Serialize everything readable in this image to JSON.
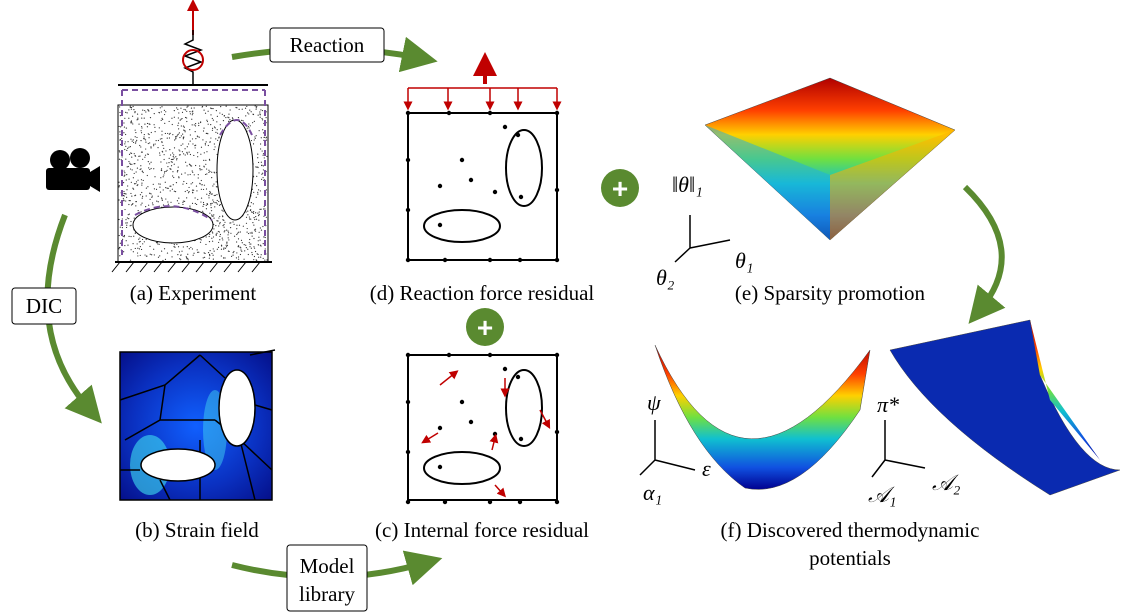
{
  "boxes": {
    "reaction": "Reaction",
    "dic": "DIC",
    "model_library": [
      "Model",
      "library"
    ]
  },
  "captions": {
    "a": "(a) Experiment",
    "d": "(d) Reaction force residual",
    "e": "(e) Sparsity promotion",
    "b": "(b) Strain field",
    "c": "(c) Internal force residual",
    "f": [
      "(f) Discovered thermodynamic",
      "potentials"
    ]
  },
  "symbols": {
    "plus_top": "+",
    "plus_mid": "+",
    "norm": "‖θ‖₁",
    "theta1": "θ₁",
    "theta2": "θ₂",
    "psi": "ψ",
    "epsilon": "ε",
    "alpha1": "α₁",
    "pi_star": "π*",
    "A1": "𝒜₁",
    "A2": "𝒜₂"
  }
}
